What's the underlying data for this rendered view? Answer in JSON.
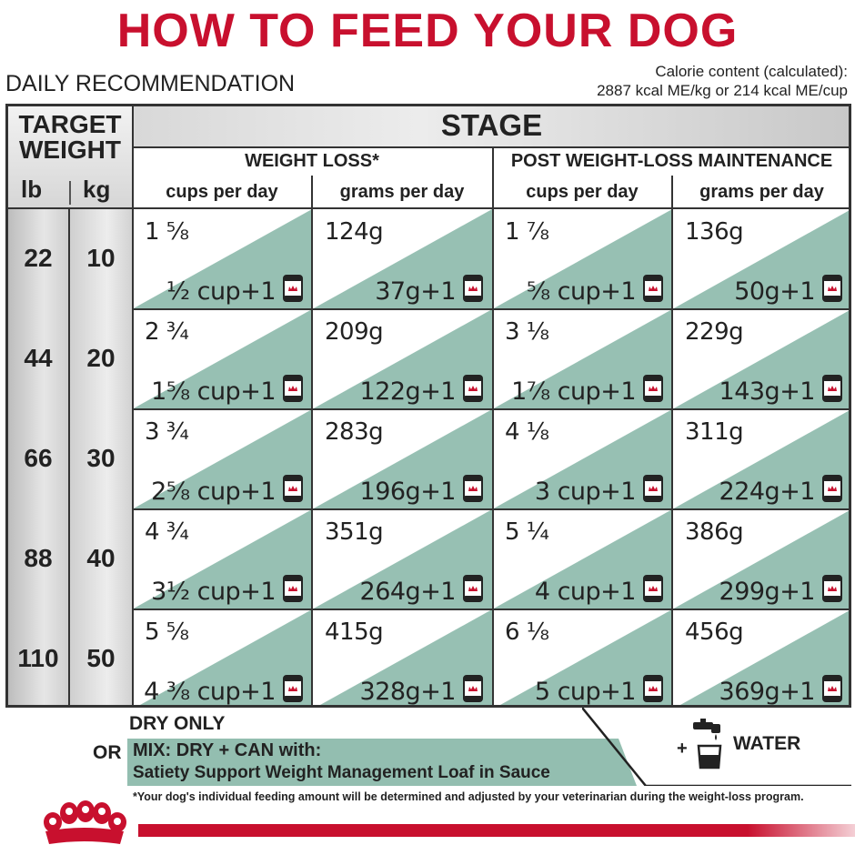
{
  "header": {
    "title": "HOW TO FEED YOUR DOG",
    "subtitle": "DAILY RECOMMENDATION",
    "calorie_line1": "Calorie content (calculated):",
    "calorie_line2": "2887 kcal ME/kg or 214 kcal ME/cup"
  },
  "table": {
    "target_weight_line1": "TARGET",
    "target_weight_line2": "WEIGHT",
    "unit_lb": "lb",
    "unit_kg": "kg",
    "stage_label": "STAGE",
    "groups": [
      "WEIGHT LOSS*",
      "POST WEIGHT-LOSS MAINTENANCE"
    ],
    "sub_headers": [
      "cups per day",
      "grams per day",
      "cups per day",
      "grams per day"
    ],
    "rows": [
      {
        "lb": "22",
        "kg": "10",
        "cells": [
          {
            "top": "1 ⅝",
            "bottom": "½ cup+1"
          },
          {
            "top": "124g",
            "bottom": "37g+1"
          },
          {
            "top": "1 ⅞",
            "bottom": "⅝ cup+1"
          },
          {
            "top": "136g",
            "bottom": "50g+1"
          }
        ]
      },
      {
        "lb": "44",
        "kg": "20",
        "cells": [
          {
            "top": "2 ¾",
            "bottom": "1⅝ cup+1"
          },
          {
            "top": "209g",
            "bottom": "122g+1"
          },
          {
            "top": "3 ⅛",
            "bottom": "1⅞ cup+1"
          },
          {
            "top": "229g",
            "bottom": "143g+1"
          }
        ]
      },
      {
        "lb": "66",
        "kg": "30",
        "cells": [
          {
            "top": "3 ¾",
            "bottom": "2⅝ cup+1"
          },
          {
            "top": "283g",
            "bottom": "196g+1"
          },
          {
            "top": "4 ⅛",
            "bottom": "3 cup+1"
          },
          {
            "top": "311g",
            "bottom": "224g+1"
          }
        ]
      },
      {
        "lb": "88",
        "kg": "40",
        "cells": [
          {
            "top": "4 ¾",
            "bottom": "3½ cup+1"
          },
          {
            "top": "351g",
            "bottom": "264g+1"
          },
          {
            "top": "5 ¼",
            "bottom": "4 cup+1"
          },
          {
            "top": "386g",
            "bottom": "299g+1"
          }
        ]
      },
      {
        "lb": "110",
        "kg": "50",
        "cells": [
          {
            "top": "5 ⅝",
            "bottom": "4 ⅜ cup+1"
          },
          {
            "top": "415g",
            "bottom": "328g+1"
          },
          {
            "top": "6 ⅛",
            "bottom": "5 cup+1"
          },
          {
            "top": "456g",
            "bottom": "369g+1"
          }
        ]
      }
    ],
    "can_icon": "can-icon"
  },
  "legend": {
    "dry_only": "DRY ONLY",
    "or": "OR",
    "mix_line1": "MIX: DRY + CAN with:",
    "mix_line2": "Satiety Support Weight Management Loaf in Sauce",
    "plus": "+",
    "water": "WATER",
    "faucet_icon": "faucet-icon"
  },
  "footnote": "*Your dog's individual feeding amount will be determined and adjusted by your veterinarian during the weight-loss program.",
  "colors": {
    "brand_red": "#c8102e",
    "teal": "#6fa895",
    "grey": "#d9d9d9"
  }
}
